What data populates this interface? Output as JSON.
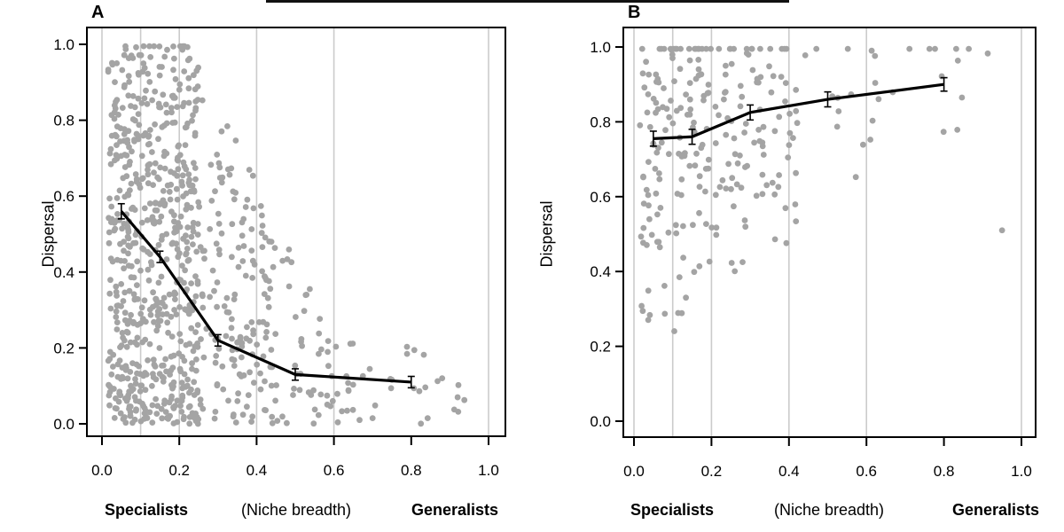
{
  "figure": {
    "background": "#ffffff",
    "point_color": "#a4a4a4",
    "grid_color": "#cbcbcb",
    "trend_color": "#000000",
    "axis_color": "#000000",
    "text_color": "#000000"
  },
  "axis_labels": {
    "y_label": "Dispersal",
    "x_left": "Specialists",
    "x_center": "(Niche breadth)",
    "x_right": "Generalists"
  },
  "chart_data": [
    {
      "panel": "A",
      "type": "scatter",
      "xlabel": "(Niche breadth)",
      "ylabel": "Dispersal",
      "xlim": [
        0,
        1
      ],
      "ylim": [
        0,
        1
      ],
      "xticks": [
        0.0,
        0.2,
        0.4,
        0.6,
        0.8,
        1.0
      ],
      "yticks": [
        0.0,
        0.2,
        0.4,
        0.6,
        0.8,
        1.0
      ],
      "gridlines_x": [
        0.0,
        0.1,
        0.2,
        0.4,
        0.6,
        1.0
      ],
      "grid": "vertical-only",
      "legend": "none",
      "trend": {
        "x": [
          0.05,
          0.15,
          0.3,
          0.5,
          0.8
        ],
        "y": [
          0.56,
          0.44,
          0.22,
          0.13,
          0.11
        ],
        "se": [
          0.02,
          0.015,
          0.015,
          0.015,
          0.015
        ]
      },
      "scatter": {
        "n": 880,
        "seed": 20240501,
        "x_segments": [
          {
            "range": [
              0.015,
              0.25
            ],
            "weight": 0.71
          },
          {
            "range": [
              0.25,
              0.45
            ],
            "weight": 0.19
          },
          {
            "range": [
              0.45,
              0.65
            ],
            "weight": 0.08
          },
          {
            "range": [
              0.65,
              0.94
            ],
            "weight": 0.02
          }
        ],
        "y_model": {
          "type": "envelope",
          "flat_until": 0.22,
          "slope": 2.0,
          "ymin_cap": 0.22,
          "pow": 1.15
        }
      },
      "extra_points": [
        [
          0.88,
          0.12
        ],
        [
          0.92,
          0.07
        ]
      ]
    },
    {
      "panel": "B",
      "type": "scatter",
      "xlabel": "(Niche breadth)",
      "ylabel": "Dispersal",
      "xlim": [
        0,
        1
      ],
      "ylim": [
        0,
        1
      ],
      "xticks": [
        0.0,
        0.2,
        0.4,
        0.6,
        0.8,
        1.0
      ],
      "yticks": [
        0.0,
        0.2,
        0.4,
        0.6,
        0.8,
        1.0
      ],
      "gridlines_x": [
        0.0,
        0.1,
        0.2,
        0.4,
        0.6,
        1.0
      ],
      "grid": "vertical-only",
      "legend": "none",
      "trend": {
        "x": [
          0.05,
          0.15,
          0.3,
          0.5,
          0.8
        ],
        "y": [
          0.755,
          0.76,
          0.825,
          0.86,
          0.9
        ],
        "se": [
          0.02,
          0.02,
          0.02,
          0.02,
          0.018
        ]
      },
      "scatter": {
        "n": 265,
        "seed": 98761234,
        "x_segments": [
          {
            "range": [
              0.015,
              0.22
            ],
            "weight": 0.55
          },
          {
            "range": [
              0.22,
              0.42
            ],
            "weight": 0.33
          },
          {
            "range": [
              0.42,
              0.65
            ],
            "weight": 0.09
          },
          {
            "range": [
              0.65,
              0.96
            ],
            "weight": 0.03
          }
        ],
        "y_model": {
          "type": "band",
          "base": 0.72,
          "x_coef": 0.25,
          "spread_base": 0.4,
          "spread_x_coef": -0.25,
          "clamp": [
            0.24,
            0.995
          ]
        }
      },
      "extra_points": [
        [
          0.95,
          0.51
        ]
      ]
    }
  ]
}
